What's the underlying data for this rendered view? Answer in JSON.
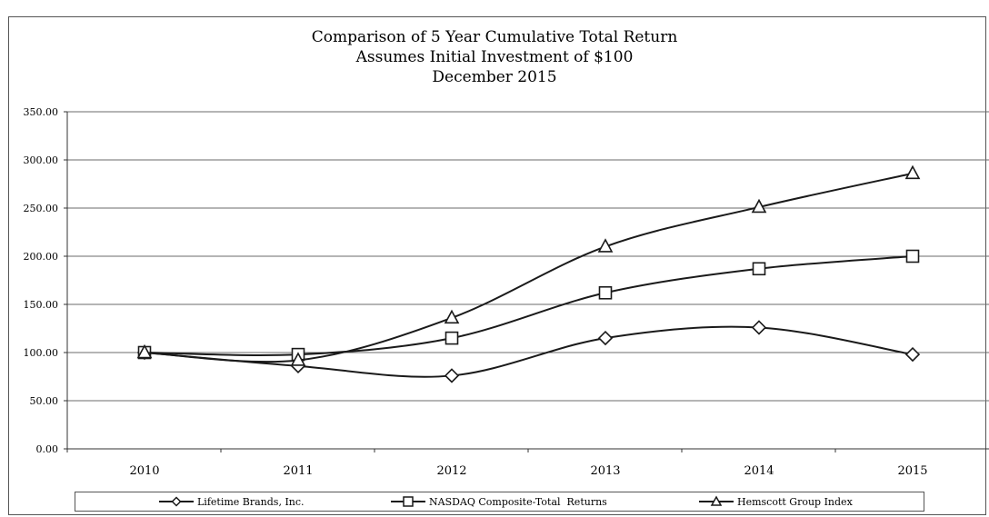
{
  "chart_data": {
    "type": "line",
    "title_lines": [
      "Comparison of 5 Year Cumulative Total Return",
      "Assumes Initial Investment of $100",
      "December 2015"
    ],
    "categories": [
      "2010",
      "2011",
      "2012",
      "2013",
      "2014",
      "2015"
    ],
    "ylim": [
      0,
      350
    ],
    "yticks": [
      "0.00",
      "50.00",
      "100.00",
      "150.00",
      "200.00",
      "250.00",
      "300.00",
      "350.00"
    ],
    "grid": "horizontal",
    "legend_position": "bottom",
    "series": [
      {
        "name": "Lifetime Brands, Inc.",
        "marker": "diamond",
        "values": [
          100,
          86,
          76,
          115,
          126,
          98
        ]
      },
      {
        "name": "NASDAQ Composite-Total  Returns",
        "marker": "square",
        "values": [
          100,
          98,
          115,
          162,
          187,
          200
        ]
      },
      {
        "name": "Hemscott Group Index",
        "marker": "triangle",
        "values": [
          100,
          92,
          136,
          210,
          251,
          286
        ]
      }
    ]
  }
}
